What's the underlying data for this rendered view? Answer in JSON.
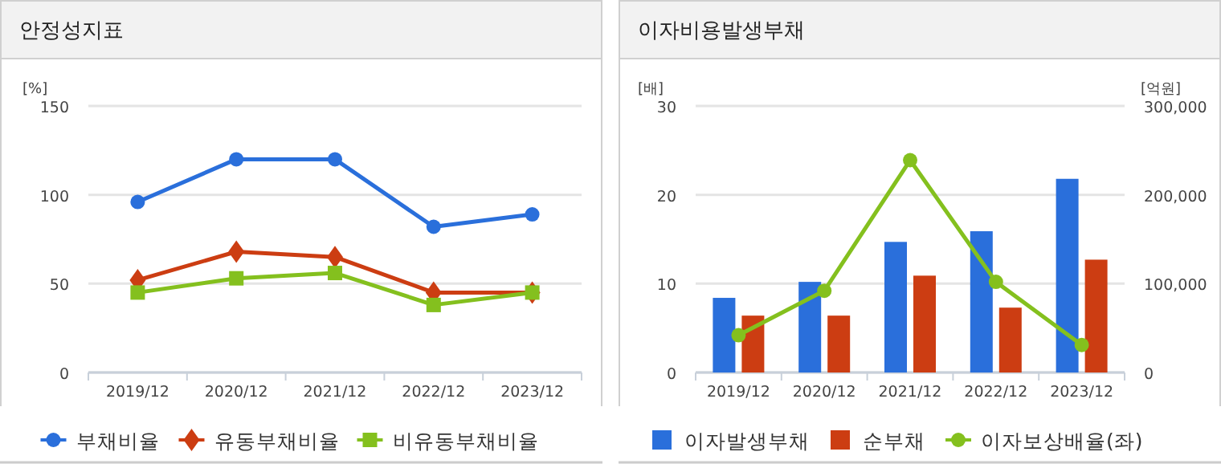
{
  "chart_data": [
    {
      "type": "line",
      "title": "안정성지표",
      "ylabel": "[%]",
      "categories": [
        "2019/12",
        "2020/12",
        "2021/12",
        "2022/12",
        "2023/12"
      ],
      "series": [
        {
          "name": "부채비율",
          "color": "#2a6fdb",
          "marker": "circle",
          "values": [
            96,
            120,
            120,
            82,
            89
          ]
        },
        {
          "name": "유동부채비율",
          "color": "#cc3d12",
          "marker": "diamond",
          "values": [
            52,
            68,
            65,
            45,
            45
          ]
        },
        {
          "name": "비유동부채비율",
          "color": "#84c01e",
          "marker": "square",
          "values": [
            45,
            53,
            56,
            38,
            45
          ]
        }
      ],
      "ylim": [
        0,
        150
      ],
      "yticks": [
        0,
        50,
        100,
        150
      ],
      "grid": "y",
      "legend": "bottom"
    },
    {
      "type": "bar",
      "title": "이자비용발생부채",
      "ylabel": "[배]",
      "y2label": "[억원]",
      "categories": [
        "2019/12",
        "2020/12",
        "2021/12",
        "2022/12",
        "2023/12"
      ],
      "series": [
        {
          "name": "이자발생부채",
          "color": "#2a6fdb",
          "axis": "y2",
          "values": [
            84000,
            102000,
            147000,
            159000,
            218000
          ]
        },
        {
          "name": "순부채",
          "color": "#cc3d12",
          "axis": "y2",
          "values": [
            64000,
            64000,
            109000,
            73000,
            127000
          ]
        },
        {
          "name": "이자보상배율(좌)",
          "type": "line",
          "color": "#84c01e",
          "marker": "circle",
          "values": [
            4.2,
            9.2,
            23.9,
            10.2,
            3.1
          ]
        }
      ],
      "ylim": [
        0,
        30
      ],
      "yticks": [
        0,
        10,
        20,
        30
      ],
      "y2lim": [
        0,
        300000
      ],
      "y2ticks": [
        0,
        {
          "value": 100000,
          "label": "100,000"
        },
        {
          "value": 200000,
          "label": "200,000"
        },
        {
          "value": 300000,
          "label": "300,000"
        }
      ],
      "grid": "y",
      "legend": "bottom"
    }
  ]
}
